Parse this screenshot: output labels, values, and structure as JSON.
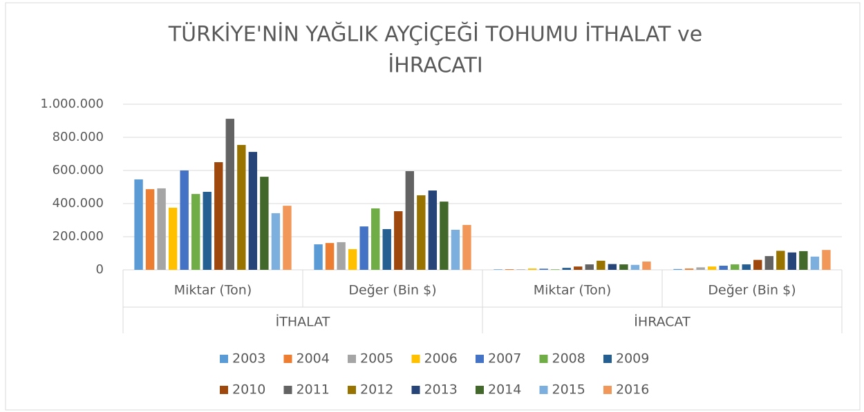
{
  "chart_data": {
    "type": "bar",
    "title": [
      "TÜRKİYE'NİN YAĞLIK AYÇİÇEĞİ TOHUMU İTHALAT ve",
      "İHRACATI"
    ],
    "categories": [
      "Miktar (Ton)",
      "Değer (Bin $)",
      "Miktar (Ton)",
      "Değer (Bin $)"
    ],
    "category_groups": [
      "İTHALAT",
      "İHRACAT"
    ],
    "ylim": [
      0,
      1000000
    ],
    "yticks": [
      0,
      {
        "value": 200000,
        "label": "200.000"
      },
      {
        "value": 400000,
        "label": "400.000"
      },
      {
        "value": 600000,
        "label": "600.000"
      },
      {
        "value": 800000,
        "label": "800.000"
      },
      {
        "value": 1000000,
        "label": "1.000.000"
      }
    ],
    "grid": true,
    "legend": "bottom",
    "series": [
      {
        "name": "2003",
        "color": "#5b9bd5",
        "values": [
          546000,
          154000,
          3000,
          5000
        ]
      },
      {
        "name": "2004",
        "color": "#ed7d31",
        "values": [
          487000,
          162000,
          4000,
          8000
        ]
      },
      {
        "name": "2005",
        "color": "#a5a5a5",
        "values": [
          492000,
          167000,
          3000,
          15000
        ]
      },
      {
        "name": "2006",
        "color": "#ffc000",
        "values": [
          375000,
          125000,
          8000,
          20000
        ]
      },
      {
        "name": "2007",
        "color": "#4472c4",
        "values": [
          600000,
          262000,
          7000,
          25000
        ]
      },
      {
        "name": "2008",
        "color": "#70ad47",
        "values": [
          458000,
          371000,
          3000,
          33000
        ]
      },
      {
        "name": "2009",
        "color": "#255e91",
        "values": [
          471000,
          246000,
          12000,
          33000
        ]
      },
      {
        "name": "2010",
        "color": "#9e480e",
        "values": [
          650000,
          354000,
          20000,
          60000
        ]
      },
      {
        "name": "2011",
        "color": "#636363",
        "values": [
          912000,
          596000,
          33000,
          83000
        ]
      },
      {
        "name": "2012",
        "color": "#997300",
        "values": [
          754000,
          450000,
          55000,
          115000
        ]
      },
      {
        "name": "2013",
        "color": "#264478",
        "values": [
          712000,
          479000,
          35000,
          105000
        ]
      },
      {
        "name": "2014",
        "color": "#43682b",
        "values": [
          562000,
          412000,
          33000,
          113000
        ]
      },
      {
        "name": "2015",
        "color": "#7cafdd",
        "values": [
          342000,
          242000,
          30000,
          80000
        ]
      },
      {
        "name": "2016",
        "color": "#f1975a",
        "values": [
          387000,
          271000,
          50000,
          120000
        ]
      }
    ]
  }
}
